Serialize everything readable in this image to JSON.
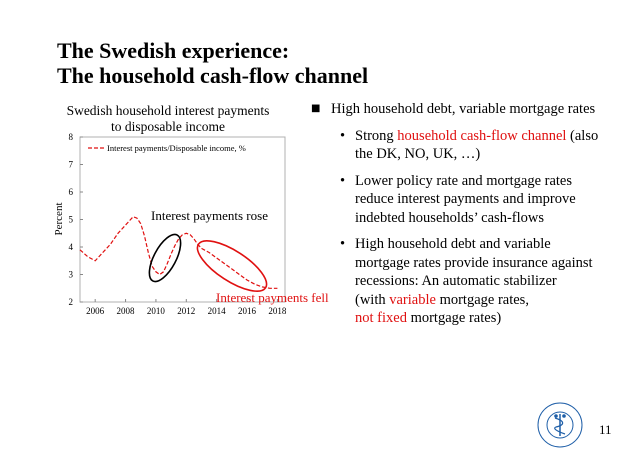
{
  "slide": {
    "title_line1": "The Swedish experience:",
    "title_line2": "The household cash-flow channel",
    "page_number": "11",
    "logo_text": "STOCKHOLM SCHOOL OF ECONOMICS"
  },
  "colors": {
    "red": "#e01010",
    "black": "#000000",
    "gray": "#b0b0b0"
  },
  "chart_data": {
    "type": "line",
    "title_line1": "Swedish household interest payments",
    "title_line2": "to disposable income",
    "ylabel": "Percent",
    "xlabel": "",
    "xlim": [
      2005,
      2018.5
    ],
    "ylim": [
      2,
      8
    ],
    "x_ticks": [
      "2006",
      "2008",
      "2010",
      "2012",
      "2014",
      "2016",
      "2018"
    ],
    "y_ticks": [
      "2",
      "3",
      "4",
      "5",
      "6",
      "7",
      "8"
    ],
    "legend": "Interest payments/Disposable income, %",
    "legend_position": "top-left",
    "grid": false,
    "series": [
      {
        "name": "Interest payments/Disposable income, %",
        "x": [
          2005.0,
          2005.5,
          2006.0,
          2006.5,
          2007.0,
          2007.5,
          2008.0,
          2008.5,
          2008.75,
          2009.0,
          2009.25,
          2009.5,
          2009.75,
          2010.0,
          2010.25,
          2010.5,
          2010.75,
          2011.0,
          2011.25,
          2011.5,
          2011.75,
          2012.0,
          2012.25,
          2012.5,
          2012.75,
          2013.0,
          2013.5,
          2014.0,
          2014.5,
          2015.0,
          2015.5,
          2016.0,
          2016.5,
          2017.0,
          2017.5,
          2018.0
        ],
        "values": [
          3.9,
          3.65,
          3.5,
          3.8,
          4.1,
          4.5,
          4.8,
          5.1,
          5.05,
          4.85,
          4.4,
          3.8,
          3.3,
          3.1,
          3.0,
          3.1,
          3.4,
          3.75,
          4.05,
          4.3,
          4.45,
          4.5,
          4.45,
          4.3,
          4.1,
          3.95,
          3.8,
          3.6,
          3.4,
          3.2,
          3.0,
          2.8,
          2.65,
          2.55,
          2.5,
          2.5
        ]
      }
    ],
    "annotations": [
      {
        "text": "Interest payments rose",
        "color": "#000000"
      },
      {
        "text": "Interest payments fell",
        "color": "#e01010"
      }
    ]
  },
  "bullets": {
    "b1_text": "High household debt, variable mortgage rates",
    "b2_pre": "Strong ",
    "b2_red": "household cash-flow channel",
    "b2_post": " (also the DK, NO, UK, …)",
    "b3_text": "Lower policy rate and mortgage rates reduce interest payments and improve indebted households’ cash-flows",
    "b4_text": "High household debt and variable mortgage rates provide insurance against recessions: An automatic stabilizer",
    "b4_paren_pre": "(with ",
    "b4_paren_red1": "variable",
    "b4_paren_mid": " mortgage rates,",
    "b4_paren_red2": "not fixed",
    "b4_paren_post": " mortgage rates)"
  }
}
